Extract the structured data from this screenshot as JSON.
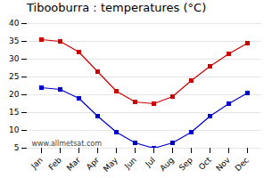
{
  "chart_data": {
    "type": "line",
    "title": "Tibooburra : temperatures (°C)",
    "categories": [
      "Jan",
      "Feb",
      "Mar",
      "Apr",
      "May",
      "Jun",
      "Jul",
      "Aug",
      "Sep",
      "Oct",
      "Nov",
      "Dec"
    ],
    "series": [
      {
        "color": "#cc0000",
        "marker": "square",
        "line_style": "solid",
        "values": [
          35.5,
          35.0,
          32.0,
          26.5,
          21.0,
          18.0,
          17.5,
          19.5,
          24.0,
          28.0,
          31.5,
          34.5
        ]
      },
      {
        "color": "#0000cc",
        "marker": "square",
        "line_style": "solid",
        "values": [
          22.0,
          21.5,
          19.0,
          14.0,
          9.5,
          6.5,
          5.0,
          6.5,
          9.5,
          14.0,
          17.5,
          20.5
        ]
      }
    ],
    "ylim": [
      5,
      40
    ],
    "yticks": [
      5,
      10,
      15,
      20,
      25,
      30,
      35,
      40
    ],
    "grid": true,
    "annotations": [
      "www.allmetsat.com"
    ]
  }
}
